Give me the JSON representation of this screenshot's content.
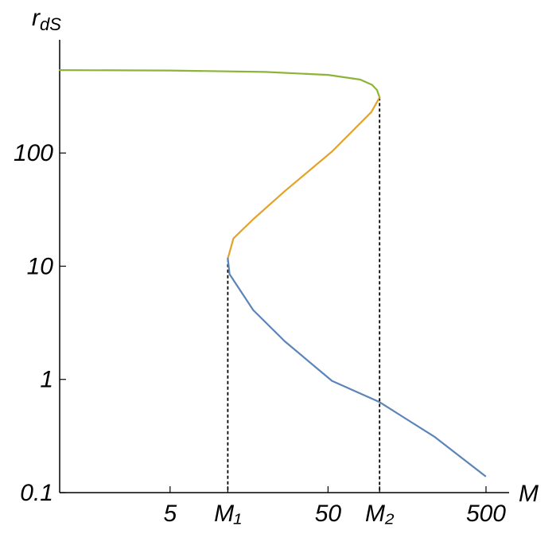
{
  "chart_data": {
    "type": "line",
    "y_label": {
      "base": "r",
      "sub": "dS"
    },
    "x_label": "M",
    "xscale": "log",
    "yscale": "log",
    "xlim": [
      1,
      700
    ],
    "ylim": [
      0.1,
      1000
    ],
    "xticks": [
      5,
      {
        "value": 11.6,
        "label": "M₁"
      },
      50,
      {
        "value": 106,
        "label": "M₂"
      },
      500
    ],
    "yticks": [
      0.1,
      1,
      10,
      100
    ],
    "series": [
      {
        "color": "#8db33a",
        "x": [
          1,
          5,
          20,
          50,
          80,
          95,
          102,
          106
        ],
        "values": [
          540,
          535,
          520,
          490,
          445,
          400,
          360,
          310
        ]
      },
      {
        "color": "#e3a32a",
        "x": [
          106,
          94,
          53,
          26.6,
          16.8,
          12.6,
          11.6
        ],
        "values": [
          310,
          230,
          103,
          46,
          26,
          17.6,
          11.7
        ]
      },
      {
        "color": "#5b84b8",
        "x": [
          11.6,
          11.9,
          16.8,
          26.6,
          53,
          106,
          237,
          495
        ],
        "values": [
          11.7,
          8.5,
          4.1,
          2.17,
          0.97,
          0.63,
          0.31,
          0.14
        ]
      }
    ]
  }
}
